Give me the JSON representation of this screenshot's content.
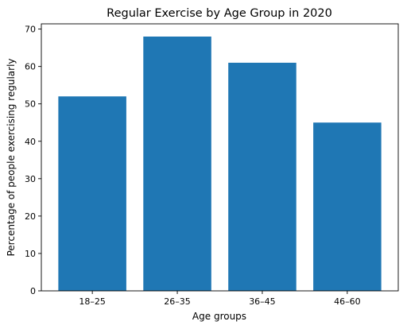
{
  "chart_data": {
    "type": "bar",
    "title": "Regular Exercise by Age Group in 2020",
    "xlabel": "Age groups",
    "ylabel": "Percentage of people exercising regularly",
    "categories": [
      "18–25",
      "26–35",
      "36–45",
      "46–60"
    ],
    "values": [
      52,
      68,
      61,
      45
    ],
    "ylim": [
      0,
      71.4
    ],
    "yticks": [
      0,
      10,
      20,
      30,
      40,
      50,
      60,
      70
    ],
    "grid": false,
    "bar_color": "#1f77b4"
  }
}
